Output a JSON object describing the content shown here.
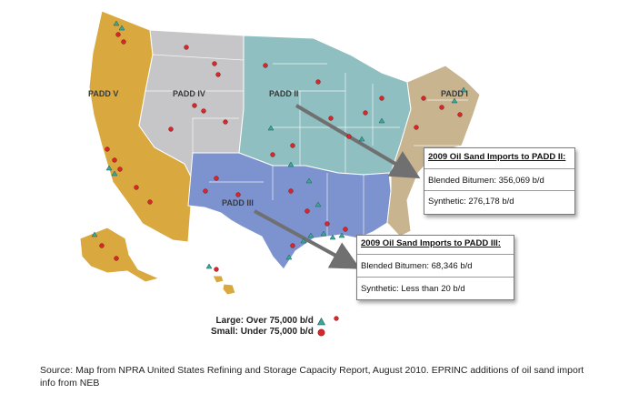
{
  "padd_labels": {
    "padd1": "PADD I",
    "padd2": "PADD II",
    "padd3": "PADD III",
    "padd4": "PADD IV",
    "padd5": "PADD V"
  },
  "colors": {
    "padd1": "#c8b48e",
    "padd2": "#8fbfc1",
    "padd3": "#7c93cf",
    "padd4": "#c6c6c8",
    "padd5": "#d9a83e",
    "large_marker": "#3fa49a",
    "small_marker": "#d8262b",
    "arrow": "#707070"
  },
  "callout_padd2": {
    "title": "2009 Oil Sand Imports to PADD II:",
    "row1": "Blended Bitumen: 356,069 b/d",
    "row2": "Synthetic: 276,178 b/d"
  },
  "callout_padd3": {
    "title": "2009 Oil Sand Imports to PADD III:",
    "row1": "Blended Bitumen: 68,346 b/d",
    "row2": "Synthetic: Less than 20 b/d"
  },
  "legend": {
    "large": "Large: Over 75,000 b/d",
    "small": "Small: Under 75,000 b/d",
    "large_icon": "triangle-icon",
    "small_icon": "circle-icon"
  },
  "source": "Source: Map from NPRA United States Refining and Storage Capacity Report, August 2010. EPRINC additions of oil sand import info from NEB"
}
